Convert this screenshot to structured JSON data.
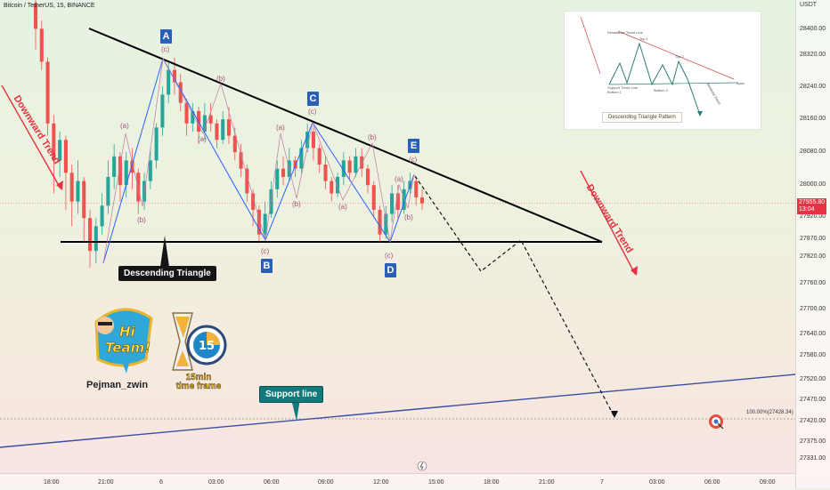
{
  "header": {
    "title": "Bitcoin / TetherUS, 15, BINANCE"
  },
  "price_axis": {
    "currency": "USDT",
    "ticks": [
      "28400.00",
      "28320.00",
      "28240.00",
      "28160.00",
      "28080.00",
      "28000.00",
      "27920.00",
      "27870.00",
      "27820.00",
      "27760.00",
      "27700.00",
      "27640.00",
      "27580.00",
      "27520.00",
      "27470.00",
      "27420.00",
      "27375.00",
      "27331.00"
    ],
    "current_price": "27955.80",
    "countdown": "13:04"
  },
  "time_axis": {
    "ticks": [
      "18:00",
      "21:00",
      "6",
      "03:00",
      "06:00",
      "09:00",
      "12:00",
      "15:00",
      "18:00",
      "21:00",
      "7",
      "03:00",
      "06:00",
      "09:00"
    ]
  },
  "chart_data": {
    "type": "candlestick",
    "instrument": "Bitcoin / TetherUS",
    "interval": "15",
    "exchange": "BINANCE",
    "ylim": [
      27300,
      28450
    ],
    "current_price": 27955.8,
    "candles": [
      {
        "o": 28440,
        "c": 28380,
        "h": 28450,
        "l": 28330
      },
      {
        "o": 28380,
        "c": 28300,
        "h": 28400,
        "l": 28280
      },
      {
        "o": 28300,
        "c": 28150,
        "h": 28310,
        "l": 28120
      },
      {
        "o": 28150,
        "c": 28060,
        "h": 28170,
        "l": 27980
      },
      {
        "o": 28060,
        "c": 28110,
        "h": 28130,
        "l": 28020
      },
      {
        "o": 28110,
        "c": 28030,
        "h": 28120,
        "l": 27940
      },
      {
        "o": 28030,
        "c": 27960,
        "h": 28050,
        "l": 27900
      },
      {
        "o": 27960,
        "c": 28010,
        "h": 28060,
        "l": 27930
      },
      {
        "o": 28010,
        "c": 27920,
        "h": 28020,
        "l": 27860
      },
      {
        "o": 27920,
        "c": 27840,
        "h": 27940,
        "l": 27800
      },
      {
        "o": 27840,
        "c": 27900,
        "h": 27920,
        "l": 27810
      },
      {
        "o": 27900,
        "c": 27950,
        "h": 27980,
        "l": 27880
      },
      {
        "o": 27950,
        "c": 28020,
        "h": 28060,
        "l": 27930
      },
      {
        "o": 28020,
        "c": 28070,
        "h": 28100,
        "l": 27990
      },
      {
        "o": 28070,
        "c": 28000,
        "h": 28080,
        "l": 27960
      },
      {
        "o": 28000,
        "c": 28060,
        "h": 28080,
        "l": 27970
      },
      {
        "o": 28060,
        "c": 28030,
        "h": 28090,
        "l": 27990
      },
      {
        "o": 28030,
        "c": 27960,
        "h": 28040,
        "l": 27930
      },
      {
        "o": 27960,
        "c": 28010,
        "h": 28030,
        "l": 27940
      },
      {
        "o": 28010,
        "c": 28060,
        "h": 28090,
        "l": 27990
      },
      {
        "o": 28060,
        "c": 28140,
        "h": 28150,
        "l": 28040
      },
      {
        "o": 28140,
        "c": 28220,
        "h": 28240,
        "l": 28120
      },
      {
        "o": 28220,
        "c": 28280,
        "h": 28300,
        "l": 28200
      },
      {
        "o": 28280,
        "c": 28250,
        "h": 28310,
        "l": 28220
      },
      {
        "o": 28250,
        "c": 28200,
        "h": 28270,
        "l": 28180
      },
      {
        "o": 28200,
        "c": 28150,
        "h": 28210,
        "l": 28120
      },
      {
        "o": 28150,
        "c": 28180,
        "h": 28200,
        "l": 28130
      },
      {
        "o": 28180,
        "c": 28130,
        "h": 28190,
        "l": 28100
      },
      {
        "o": 28130,
        "c": 28170,
        "h": 28200,
        "l": 28110
      },
      {
        "o": 28170,
        "c": 28150,
        "h": 28200,
        "l": 28130
      },
      {
        "o": 28150,
        "c": 28110,
        "h": 28160,
        "l": 28090
      },
      {
        "o": 28110,
        "c": 28160,
        "h": 28180,
        "l": 28100
      },
      {
        "o": 28160,
        "c": 28120,
        "h": 28190,
        "l": 28100
      },
      {
        "o": 28120,
        "c": 28080,
        "h": 28140,
        "l": 28060
      },
      {
        "o": 28080,
        "c": 28040,
        "h": 28100,
        "l": 28020
      },
      {
        "o": 28040,
        "c": 27980,
        "h": 28050,
        "l": 27960
      },
      {
        "o": 27980,
        "c": 27940,
        "h": 27990,
        "l": 27900
      },
      {
        "o": 27940,
        "c": 27880,
        "h": 27950,
        "l": 27860
      },
      {
        "o": 27880,
        "c": 27930,
        "h": 27960,
        "l": 27870
      },
      {
        "o": 27930,
        "c": 27990,
        "h": 28010,
        "l": 27920
      },
      {
        "o": 27990,
        "c": 28040,
        "h": 28060,
        "l": 27970
      },
      {
        "o": 28040,
        "c": 28020,
        "h": 28070,
        "l": 28000
      },
      {
        "o": 28020,
        "c": 28060,
        "h": 28090,
        "l": 28010
      },
      {
        "o": 28060,
        "c": 28040,
        "h": 28070,
        "l": 28020
      },
      {
        "o": 28040,
        "c": 28090,
        "h": 28110,
        "l": 28030
      },
      {
        "o": 28090,
        "c": 28130,
        "h": 28150,
        "l": 28080
      },
      {
        "o": 28130,
        "c": 28090,
        "h": 28140,
        "l": 28060
      },
      {
        "o": 28090,
        "c": 28050,
        "h": 28100,
        "l": 28030
      },
      {
        "o": 28050,
        "c": 28010,
        "h": 28070,
        "l": 27990
      },
      {
        "o": 28010,
        "c": 27980,
        "h": 28020,
        "l": 27960
      },
      {
        "o": 27980,
        "c": 28020,
        "h": 28030,
        "l": 27970
      },
      {
        "o": 28020,
        "c": 28060,
        "h": 28080,
        "l": 28000
      },
      {
        "o": 28060,
        "c": 28030,
        "h": 28070,
        "l": 28010
      },
      {
        "o": 28030,
        "c": 28070,
        "h": 28090,
        "l": 28020
      },
      {
        "o": 28070,
        "c": 28040,
        "h": 28090,
        "l": 28020
      },
      {
        "o": 28040,
        "c": 28000,
        "h": 28050,
        "l": 27980
      },
      {
        "o": 28000,
        "c": 27940,
        "h": 28010,
        "l": 27920
      },
      {
        "o": 27940,
        "c": 27880,
        "h": 27950,
        "l": 27860
      },
      {
        "o": 27880,
        "c": 27930,
        "h": 27950,
        "l": 27870
      },
      {
        "o": 27930,
        "c": 27980,
        "h": 28000,
        "l": 27910
      },
      {
        "o": 27980,
        "c": 27940,
        "h": 28000,
        "l": 27920
      },
      {
        "o": 27940,
        "c": 27990,
        "h": 28010,
        "l": 27930
      },
      {
        "o": 27990,
        "c": 28010,
        "h": 28030,
        "l": 27980
      },
      {
        "o": 28010,
        "c": 27970,
        "h": 28020,
        "l": 27950
      },
      {
        "o": 27970,
        "c": 27955.8,
        "h": 27990,
        "l": 27940
      }
    ],
    "wave_labels": [
      {
        "point": "A",
        "sub": "(c)",
        "price": 28300
      },
      {
        "point": "B",
        "sub": "(c)",
        "price": 27870
      },
      {
        "point": "C",
        "sub": "(c)",
        "price": 28140
      },
      {
        "point": "D",
        "sub": "(c)",
        "price": 27870
      },
      {
        "point": "E",
        "sub": "(c)",
        "price": 28020
      }
    ],
    "resistance_line": {
      "from_price": 28400,
      "to_price": 27870
    },
    "support_level": 27870,
    "fib_level": {
      "label": "100.00%(27428.34)",
      "price": 27428.34
    }
  },
  "annotations": {
    "pattern_label": "Descending Triangle",
    "support_label": "Support line",
    "trend_left": "Downward Trend",
    "trend_right": "Downward Trend",
    "points": [
      "A",
      "B",
      "C",
      "D",
      "E"
    ],
    "wave_small": {
      "a": "(a)",
      "b": "(b)",
      "c": "(c)"
    }
  },
  "inset": {
    "caption": "Descending Triangle Pattern",
    "labels": {
      "resistance": "Resistance Trend Line",
      "top1": "Top 1",
      "top2": "Top 2",
      "support": "Support Trend Line",
      "bottom1": "Bottom 1",
      "bottom2": "Bottom 2",
      "apex": "Apex",
      "breakout": "Breakout Down"
    }
  },
  "branding": {
    "logo_hi": "Hi",
    "logo_team": "Team!",
    "author": "Pejman_zwin",
    "timer_number": "15",
    "timeframe_line1": "15min",
    "timeframe_line2": "time frame"
  },
  "colors": {
    "up": "#26a69a",
    "down": "#ef5350",
    "wave": "#2962ff",
    "trend": "#e5323f"
  }
}
